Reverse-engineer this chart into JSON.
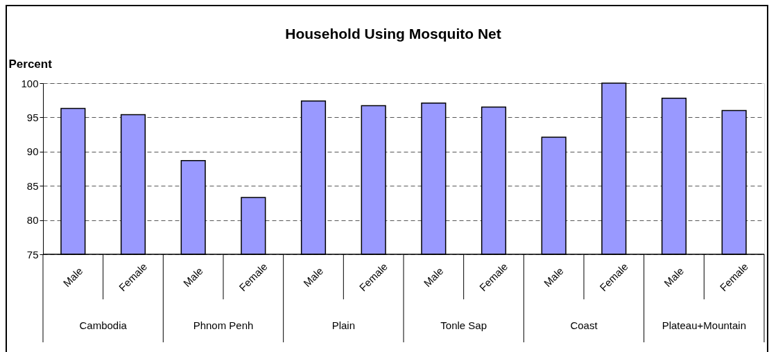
{
  "chart_data": {
    "type": "bar",
    "title": "Household Using Mosquito Net",
    "ylabel": "Percent",
    "categories": [
      "Male",
      "Female",
      "Male",
      "Female",
      "Male",
      "Female",
      "Male",
      "Female",
      "Male",
      "Female",
      "Male",
      "Female"
    ],
    "series": [
      {
        "color": "#9999ff",
        "values": [
          96.3,
          95.4,
          88.7,
          83.3,
          97.4,
          96.7,
          97.1,
          96.5,
          92.1,
          100,
          97.8,
          96.0
        ]
      }
    ],
    "annotations": [
      "Cambodia",
      "Phnom Penh",
      "Plain",
      "Tonle Sap",
      "Coast",
      "Plateau+Mountain"
    ],
    "ylim": [
      75,
      100
    ],
    "yticks": [
      75,
      80,
      85,
      90,
      95,
      100
    ],
    "grid": "y"
  }
}
